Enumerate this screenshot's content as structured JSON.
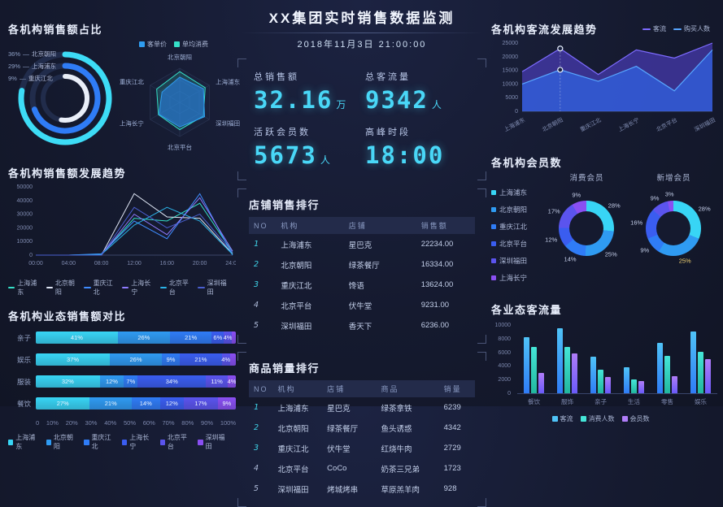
{
  "colors": {
    "bg": "#151a2f",
    "accent_cyan": "#49d7f7",
    "institutions": [
      "#38d5f5",
      "#2f9bf2",
      "#2f7cf6",
      "#3a5df0",
      "#5b54ee",
      "#8a4ff2"
    ]
  },
  "header": {
    "title": "XX集团实时销售数据监测",
    "datetime": "2018年11月3日 21:00:00"
  },
  "kpis": [
    {
      "label": "总销售额",
      "value": "32.16",
      "unit": "万"
    },
    {
      "label": "总客流量",
      "value": "9342",
      "unit": "人"
    },
    {
      "label": "活跃会员数",
      "value": "5673",
      "unit": "人"
    },
    {
      "label": "高峰时段",
      "value": "18:00",
      "unit": ""
    }
  ],
  "chart_data": [
    {
      "id": "sales-share-rings",
      "type": "pie",
      "title": "各机构销售额占比",
      "items": [
        {
          "label": "北京朝阳",
          "pct": "36%",
          "sweep": 280,
          "radius": 54,
          "color": "#3ddcf6"
        },
        {
          "label": "上海浦东",
          "pct": "29%",
          "sweep": 250,
          "radius": 40,
          "color": "#2f7cf6"
        },
        {
          "label": "重庆江北",
          "pct": "9%",
          "sweep": 190,
          "radius": 27,
          "color": "#e9eef8"
        }
      ]
    },
    {
      "id": "price-radar",
      "type": "radar",
      "legend": [
        {
          "label": "客单价",
          "color": "#2f9df0"
        },
        {
          "label": "单均消费",
          "color": "#35e0c8"
        }
      ],
      "axes": [
        "北京朝阳",
        "上海浦东",
        "深圳福田",
        "北京平台",
        "上海长宁",
        "重庆江北"
      ],
      "series": [
        {
          "name": "单均消费",
          "color": "#35e0c8",
          "fill": "rgba(53,224,200,0.18)",
          "values": [
            0.9,
            0.86,
            0.8,
            0.8,
            0.72,
            0.78
          ]
        },
        {
          "name": "客单价",
          "color": "#2f9df0",
          "fill": "rgba(42,130,228,0.6)",
          "values": [
            0.74,
            0.8,
            0.84,
            0.72,
            0.7,
            0.6
          ]
        }
      ]
    },
    {
      "id": "sales-trend",
      "type": "line",
      "title": "各机构销售额发展趋势",
      "x": [
        "00:00",
        "04:00",
        "08:00",
        "12:00",
        "16:00",
        "20:00",
        "24:00"
      ],
      "ylim": [
        0,
        50000
      ],
      "yticks": [
        0,
        10000,
        20000,
        30000,
        40000,
        50000
      ],
      "series": [
        {
          "name": "上海浦东",
          "color": "#35e0c8",
          "values": [
            0,
            0,
            500,
            27000,
            25000,
            38000,
            2000
          ]
        },
        {
          "name": "北京朝阳",
          "color": "#dfe6f5",
          "values": [
            0,
            0,
            0,
            45000,
            28000,
            27000,
            1000
          ]
        },
        {
          "name": "重庆江北",
          "color": "#3f8cff",
          "values": [
            0,
            0,
            1000,
            25000,
            12000,
            45000,
            0
          ]
        },
        {
          "name": "上海长宁",
          "color": "#8f7bff",
          "values": [
            0,
            0,
            0,
            30000,
            15000,
            42000,
            3000
          ]
        },
        {
          "name": "北京平台",
          "color": "#2bb3e8",
          "values": [
            0,
            0,
            500,
            22000,
            35000,
            25000,
            500
          ]
        },
        {
          "name": "深圳福田",
          "color": "#4a5fd0",
          "values": [
            0,
            0,
            0,
            35000,
            20000,
            30000,
            2000
          ]
        }
      ]
    },
    {
      "id": "category-sales-compare",
      "type": "bar-h-stacked",
      "title": "各机构业态销售额对比",
      "categories": [
        "亲子",
        "娱乐",
        "服装",
        "餐饮"
      ],
      "xticks": [
        "0",
        "10%",
        "20%",
        "30%",
        "40%",
        "50%",
        "60%",
        "70%",
        "80%",
        "90%",
        "100%"
      ],
      "legend": [
        "上海浦东",
        "北京朝阳",
        "重庆江北",
        "上海长宁",
        "北京平台",
        "深圳福田"
      ],
      "rows": [
        [
          41,
          26,
          21,
          6,
          4,
          2
        ],
        [
          37,
          26,
          9,
          21,
          4,
          3
        ],
        [
          32,
          12,
          7,
          34,
          11,
          4
        ],
        [
          27,
          21,
          14,
          12,
          17,
          9
        ]
      ]
    },
    {
      "id": "traffic-trend",
      "type": "area",
      "title": "各机构客流发展趋势",
      "categories": [
        "上海浦东",
        "北京朝阳",
        "重庆江北",
        "上海长宁",
        "北京平台",
        "深圳福田"
      ],
      "ylim": [
        0,
        25000
      ],
      "yticks": [
        0,
        5000,
        10000,
        15000,
        20000,
        25000
      ],
      "highlight_index": 1,
      "series": [
        {
          "name": "客流",
          "color": "#7d6bff",
          "fill": "rgba(88,70,220,0.55)",
          "values": [
            14500,
            23000,
            13500,
            22500,
            19500,
            25000
          ]
        },
        {
          "name": "购买人数",
          "color": "#58a6ff",
          "fill": "rgba(47,110,245,0.6)",
          "values": [
            10000,
            15200,
            11000,
            16500,
            7500,
            22500
          ]
        }
      ]
    },
    {
      "id": "members-consume",
      "type": "pie",
      "title": "各机构会员数",
      "subtitle": "消费会员",
      "legend": [
        "上海浦东",
        "北京朝阳",
        "重庆江北",
        "北京平台",
        "深圳福田",
        "上海长宁"
      ],
      "values": [
        28,
        25,
        14,
        12,
        17,
        9
      ],
      "labels": [
        "28%",
        "25%",
        "14%",
        "12%",
        "17%",
        "9%"
      ],
      "highlight_index": -1
    },
    {
      "id": "members-new",
      "type": "pie",
      "subtitle": "新增会员",
      "values": [
        28,
        25,
        9,
        16,
        9,
        3
      ],
      "labels": [
        "28%",
        "25%",
        "9%",
        "16%",
        "9%",
        "3%"
      ],
      "highlight_index": 1
    },
    {
      "id": "category-traffic",
      "type": "bar",
      "title": "各业态客流量",
      "categories": [
        "餐饮",
        "服饰",
        "亲子",
        "生活",
        "零售",
        "娱乐"
      ],
      "ylim": [
        0,
        10000
      ],
      "yticks": [
        0,
        2000,
        4000,
        6000,
        8000,
        10000
      ],
      "series": [
        {
          "name": "客流",
          "c1": "#4fc3f7",
          "c2": "#2f7cf6",
          "values": [
            8200,
            9500,
            5300,
            3800,
            7400,
            9000
          ]
        },
        {
          "name": "消费人数",
          "c1": "#45e6d8",
          "c2": "#22b79e",
          "values": [
            6800,
            6800,
            3500,
            2000,
            5500,
            6100
          ]
        },
        {
          "name": "会员数",
          "c1": "#b07df8",
          "c2": "#6a5af9",
          "values": [
            3000,
            5800,
            2400,
            1800,
            2500,
            5000
          ]
        }
      ]
    },
    {
      "id": "shop-rank",
      "type": "table",
      "title": "店铺销售排行",
      "headers": [
        "NO",
        "机构",
        "店铺",
        "销售额"
      ],
      "rows": [
        [
          "1",
          "上海浦东",
          "星巴克",
          "22234.00"
        ],
        [
          "2",
          "北京朝阳",
          "绿茶餐厅",
          "16334.00"
        ],
        [
          "3",
          "重庆江北",
          "馋语",
          "13624.00"
        ],
        [
          "4",
          "北京平台",
          "伏牛堂",
          "9231.00"
        ],
        [
          "5",
          "深圳福田",
          "香天下",
          "6236.00"
        ]
      ]
    },
    {
      "id": "product-rank",
      "type": "table",
      "title": "商品销量排行",
      "headers": [
        "NO",
        "机构",
        "店铺",
        "商品",
        "销量"
      ],
      "rows": [
        [
          "1",
          "上海浦东",
          "星巴克",
          "绿茶拿铁",
          "6239"
        ],
        [
          "2",
          "北京朝阳",
          "绿茶餐厅",
          "鱼头诱惑",
          "4342"
        ],
        [
          "3",
          "重庆江北",
          "伏牛堂",
          "红烧牛肉",
          "2729"
        ],
        [
          "4",
          "北京平台",
          "CoCo",
          "奶茶三兄弟",
          "1723"
        ],
        [
          "5",
          "深圳福田",
          "烤城烤串",
          "草原羔羊肉",
          "928"
        ]
      ]
    }
  ]
}
